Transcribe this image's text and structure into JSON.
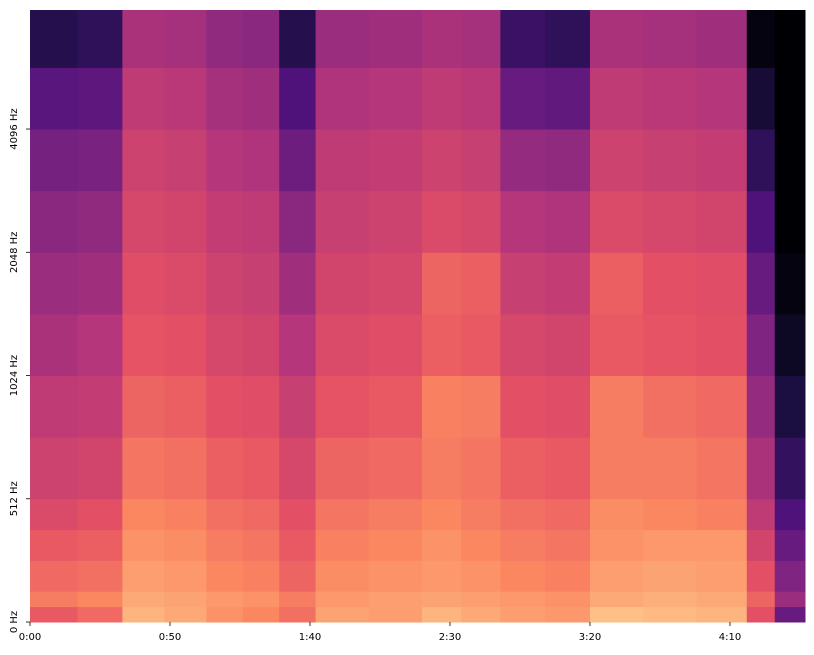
{
  "chart_data": {
    "type": "heatmap",
    "colormap": "magma",
    "x": [
      0,
      17,
      33,
      48,
      63,
      76,
      89,
      102,
      121,
      140,
      154,
      168,
      184,
      200,
      219,
      238,
      256,
      266,
      276.8
    ],
    "y": [
      0,
      64,
      128,
      256,
      384,
      512,
      724,
      1024,
      1448,
      2048,
      2896,
      4096,
      5793,
      8000
    ],
    "z": [
      [
        -28,
        -25,
        -12,
        -14,
        -18,
        -20,
        -24,
        -15,
        -16,
        -12,
        -14,
        -16,
        -17,
        -10,
        -11,
        -12,
        -30,
        -55
      ],
      [
        -22,
        -20,
        -14,
        -15,
        -17,
        -18,
        -22,
        -17,
        -16,
        -15,
        -16,
        -17,
        -18,
        -14,
        -13,
        -14,
        -26,
        -45
      ],
      [
        -25,
        -24,
        -16,
        -17,
        -20,
        -21,
        -26,
        -19,
        -18,
        -17,
        -18,
        -20,
        -21,
        -16,
        -15,
        -16,
        -30,
        -50
      ],
      [
        -28,
        -27,
        -18,
        -19,
        -22,
        -23,
        -28,
        -21,
        -20,
        -18,
        -20,
        -22,
        -23,
        -18,
        -17,
        -17,
        -34,
        -55
      ],
      [
        -32,
        -30,
        -20,
        -21,
        -24,
        -25,
        -30,
        -23,
        -22,
        -20,
        -22,
        -24,
        -25,
        -19,
        -20,
        -21,
        -38,
        -60
      ],
      [
        -35,
        -34,
        -23,
        -24,
        -27,
        -28,
        -33,
        -26,
        -25,
        -22,
        -23,
        -27,
        -28,
        -22,
        -22,
        -23,
        -42,
        -65
      ],
      [
        -38,
        -37,
        -26,
        -27,
        -30,
        -31,
        -36,
        -29,
        -28,
        -21,
        -22,
        -30,
        -31,
        -22,
        -24,
        -25,
        -46,
        -70
      ],
      [
        -42,
        -40,
        -29,
        -30,
        -33,
        -34,
        -40,
        -32,
        -31,
        -27,
        -28,
        -33,
        -34,
        -28,
        -29,
        -30,
        -50,
        -75
      ],
      [
        -45,
        -44,
        -31,
        -32,
        -35,
        -36,
        -44,
        -34,
        -33,
        -26,
        -27,
        -36,
        -37,
        -27,
        -30,
        -31,
        -55,
        -78
      ],
      [
        -48,
        -47,
        -33,
        -34,
        -37,
        -38,
        -48,
        -36,
        -35,
        -32,
        -33,
        -40,
        -41,
        -32,
        -33,
        -34,
        -60,
        -80
      ],
      [
        -52,
        -51,
        -35,
        -36,
        -40,
        -41,
        -54,
        -38,
        -37,
        -35,
        -36,
        -46,
        -47,
        -35,
        -36,
        -37,
        -66,
        -80
      ],
      [
        -58,
        -57,
        -38,
        -39,
        -43,
        -44,
        -60,
        -41,
        -40,
        -38,
        -39,
        -55,
        -56,
        -38,
        -39,
        -40,
        -72,
        -80
      ],
      [
        -68,
        -66,
        -42,
        -43,
        -47,
        -48,
        -68,
        -45,
        -44,
        -42,
        -43,
        -64,
        -66,
        -42,
        -43,
        -44,
        -78,
        -80
      ]
    ],
    "zlim": [
      -80,
      0
    ],
    "xlim": [
      0,
      276.8
    ],
    "xticks": [
      {
        "value": 0,
        "label": "0:00"
      },
      {
        "value": 50,
        "label": "0:50"
      },
      {
        "value": 100,
        "label": "1:40"
      },
      {
        "value": 150,
        "label": "2:30"
      },
      {
        "value": 200,
        "label": "3:20"
      },
      {
        "value": 250,
        "label": "4:10"
      }
    ],
    "ylim": [
      0,
      8000
    ],
    "yscale": "symlog",
    "linthresh": 512,
    "yticks": [
      {
        "value": 0,
        "label": "0 Hz"
      },
      {
        "value": 512,
        "label": "512 Hz"
      },
      {
        "value": 1024,
        "label": "1024 Hz"
      },
      {
        "value": 2048,
        "label": "2048 Hz"
      },
      {
        "value": 4096,
        "label": "4096 Hz"
      }
    ]
  }
}
